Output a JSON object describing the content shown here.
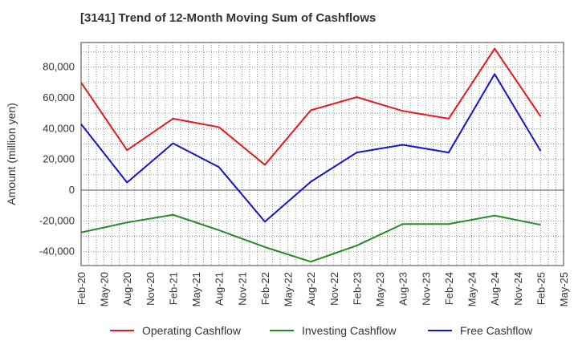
{
  "title": "[3141]  Trend of 12-Month Moving Sum of Cashflows",
  "chart_data": {
    "type": "line",
    "title": "[3141]  Trend of 12-Month Moving Sum of Cashflows",
    "xlabel": "",
    "ylabel": "Amount (million yen)",
    "ylim": [
      -49000,
      96000
    ],
    "yticks": [
      80000,
      60000,
      40000,
      20000,
      0,
      -20000,
      -40000
    ],
    "ytick_labels": [
      "80,000",
      "60,000",
      "40,000",
      "20,000",
      "0",
      "-20,000",
      "-40,000"
    ],
    "x_tick_labels": [
      "Feb-20",
      "May-20",
      "Aug-20",
      "Nov-20",
      "Feb-21",
      "May-21",
      "Aug-21",
      "Nov-21",
      "Feb-22",
      "May-22",
      "Aug-22",
      "Nov-22",
      "Feb-23",
      "May-23",
      "Aug-23",
      "Nov-23",
      "Feb-24",
      "May-24",
      "Aug-24",
      "Nov-24",
      "Feb-25",
      "May-25"
    ],
    "x": [
      "Feb-20",
      "Aug-20",
      "Feb-21",
      "Aug-21",
      "Feb-22",
      "Aug-22",
      "Feb-23",
      "Aug-23",
      "Feb-24",
      "Aug-24",
      "Feb-25"
    ],
    "grid": true,
    "legend_position": "bottom",
    "series": [
      {
        "name": "Operating Cashflow",
        "color": "#e8191b",
        "values": [
          70000,
          26000,
          46500,
          41000,
          16500,
          52000,
          60500,
          51500,
          46500,
          92000,
          48000
        ]
      },
      {
        "name": "Investing Cashflow",
        "color": "#238b23",
        "values": [
          -27500,
          -21000,
          -16000,
          -26000,
          -37000,
          -46500,
          -36000,
          -22000,
          -22000,
          -16500,
          -22500
        ]
      },
      {
        "name": "Free Cashflow",
        "color": "#1414d2",
        "values": [
          43000,
          5000,
          30500,
          15000,
          -20500,
          5500,
          24500,
          29500,
          24500,
          75500,
          25500
        ]
      }
    ]
  }
}
